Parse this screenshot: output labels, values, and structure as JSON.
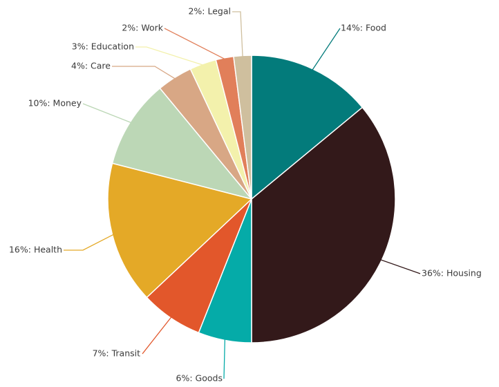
{
  "chart_data": {
    "type": "pie",
    "title": "",
    "label_format": "{percent}%: {name}",
    "slices": [
      {
        "name": "Food",
        "percent": 14,
        "color": "#037B7B"
      },
      {
        "name": "Housing",
        "percent": 36,
        "color": "#33191A"
      },
      {
        "name": "Goods",
        "percent": 6,
        "color": "#05ABA8"
      },
      {
        "name": "Transit",
        "percent": 7,
        "color": "#E2572B"
      },
      {
        "name": "Health",
        "percent": 16,
        "color": "#E4A927"
      },
      {
        "name": "Money",
        "percent": 10,
        "color": "#BCD7B6"
      },
      {
        "name": "Care",
        "percent": 4,
        "color": "#D8A785"
      },
      {
        "name": "Education",
        "percent": 3,
        "color": "#F3F1AC"
      },
      {
        "name": "Work",
        "percent": 2,
        "color": "#E17F5A"
      },
      {
        "name": "Legal",
        "percent": 2,
        "color": "#CFBF9E"
      }
    ]
  }
}
